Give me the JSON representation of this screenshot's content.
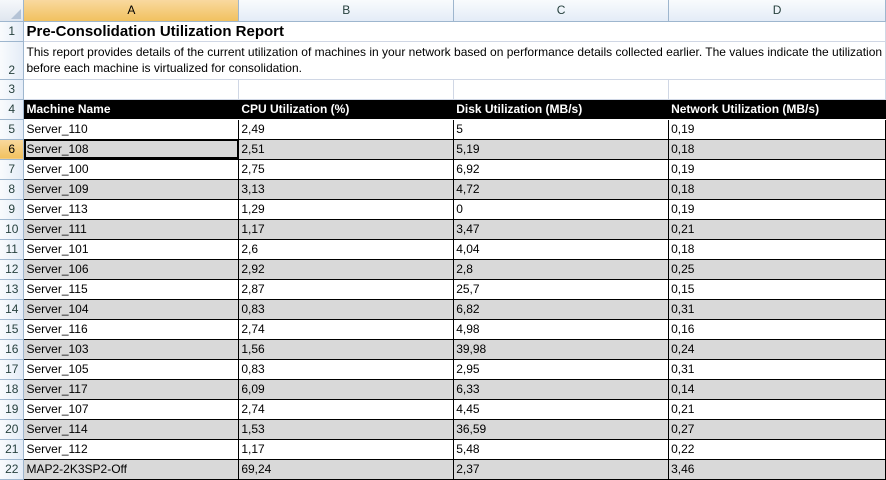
{
  "columns": [
    "A",
    "B",
    "C",
    "D"
  ],
  "selected_column": "A",
  "selected_row": "6",
  "report": {
    "title": "Pre-Consolidation Utilization Report",
    "description": "This report provides details of the current utilization of machines in your network based on performance details collected earlier. The values indicate the utilization before each machine is virtualized for consolidation."
  },
  "headers": [
    "Machine Name",
    "CPU Utilization (%)",
    "Disk Utilization (MB/s)",
    "Network Utilization (MB/s)"
  ],
  "rows": [
    {
      "num": "5",
      "cells": [
        "Server_110",
        "2,49",
        "5",
        "0,19"
      ]
    },
    {
      "num": "6",
      "cells": [
        "Server_108",
        "2,51",
        "5,19",
        "0,18"
      ]
    },
    {
      "num": "7",
      "cells": [
        "Server_100",
        "2,75",
        "6,92",
        "0,19"
      ]
    },
    {
      "num": "8",
      "cells": [
        "Server_109",
        "3,13",
        "4,72",
        "0,18"
      ]
    },
    {
      "num": "9",
      "cells": [
        "Server_113",
        "1,29",
        "0",
        "0,19"
      ]
    },
    {
      "num": "10",
      "cells": [
        "Server_111",
        "1,17",
        "3,47",
        "0,21"
      ]
    },
    {
      "num": "11",
      "cells": [
        "Server_101",
        "2,6",
        "4,04",
        "0,18"
      ]
    },
    {
      "num": "12",
      "cells": [
        "Server_106",
        "2,92",
        "2,8",
        "0,25"
      ]
    },
    {
      "num": "13",
      "cells": [
        "Server_115",
        "2,87",
        "25,7",
        "0,15"
      ]
    },
    {
      "num": "14",
      "cells": [
        "Server_104",
        "0,83",
        "6,82",
        "0,31"
      ]
    },
    {
      "num": "15",
      "cells": [
        "Server_116",
        "2,74",
        "4,98",
        "0,16"
      ]
    },
    {
      "num": "16",
      "cells": [
        "Server_103",
        "1,56",
        "39,98",
        "0,24"
      ]
    },
    {
      "num": "17",
      "cells": [
        "Server_105",
        "0,83",
        "2,95",
        "0,31"
      ]
    },
    {
      "num": "18",
      "cells": [
        "Server_117",
        "6,09",
        "6,33",
        "0,14"
      ]
    },
    {
      "num": "19",
      "cells": [
        "Server_107",
        "2,74",
        "4,45",
        "0,21"
      ]
    },
    {
      "num": "20",
      "cells": [
        "Server_114",
        "1,53",
        "36,59",
        "0,27"
      ]
    },
    {
      "num": "21",
      "cells": [
        "Server_112",
        "1,17",
        "5,48",
        "0,22"
      ]
    },
    {
      "num": "22",
      "cells": [
        "MAP2-2K3SP2-Off",
        "69,24",
        "2,37",
        "3,46"
      ]
    }
  ],
  "colors": {
    "header_bg": "#000000",
    "header_fg": "#ffffff",
    "row_shade": "#d9d9d9",
    "selection": "#f1c15f"
  }
}
